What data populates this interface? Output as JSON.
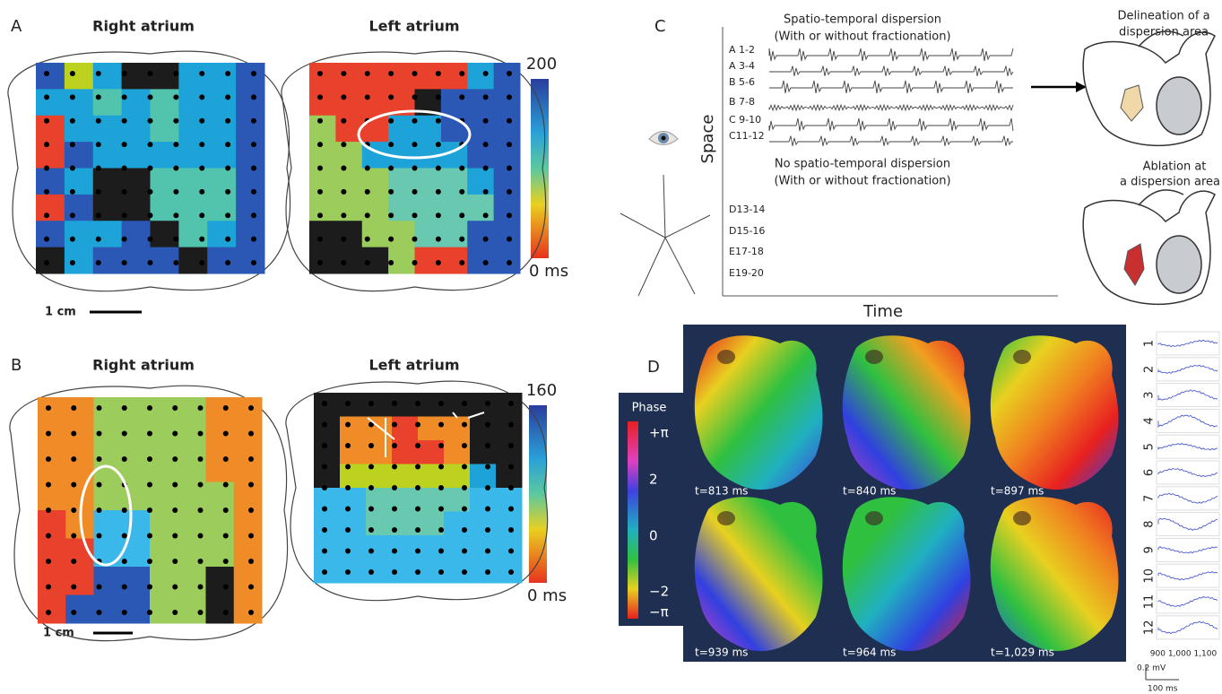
{
  "panel_a": {
    "label": "A",
    "right_title": "Right atrium",
    "left_title": "Left atrium",
    "colorbar_max": "200",
    "colorbar_min": "0 ms",
    "scale": "1 cm"
  },
  "panel_b": {
    "label": "B",
    "right_title": "Right atrium",
    "left_title": "Left atrium",
    "colorbar_max": "160",
    "colorbar_min": "0 ms",
    "scale": "1 cm"
  },
  "panel_c": {
    "label": "C",
    "top_title": [
      "Spatio-temporal dispersion",
      "(With or without fractionation)"
    ],
    "bottom_title": [
      "No spatio-temporal dispersion",
      "(With or without fractionation)"
    ],
    "channels": [
      "A 1-2",
      "A 3-4",
      "B 5-6",
      "B 7-8",
      "C 9-10",
      "C11-12",
      "D13-14",
      "D15-16",
      "E17-18",
      "E19-20"
    ],
    "y_axis": "Space",
    "x_axis": "Time",
    "delineation": [
      "Delineation of a",
      "dispersion area"
    ],
    "ablation": [
      "Ablation at",
      "a dispersion area"
    ]
  },
  "panel_d": {
    "label": "D",
    "phase_title": "Phase",
    "phase_ticks": [
      "+π",
      "2",
      "0",
      "−2",
      "−π"
    ],
    "frames": [
      "t=813 ms",
      "t=840 ms",
      "t=897 ms",
      "t=939 ms",
      "t=964 ms",
      "t=1,029 ms"
    ],
    "traces": [
      "1",
      "2",
      "3",
      "4",
      "5",
      "6",
      "7",
      "8",
      "9",
      "10",
      "11",
      "12"
    ],
    "trace_axis": "900 1,000 1,100",
    "scale_voltage": "0.2 mV",
    "scale_time": "100 ms"
  }
}
